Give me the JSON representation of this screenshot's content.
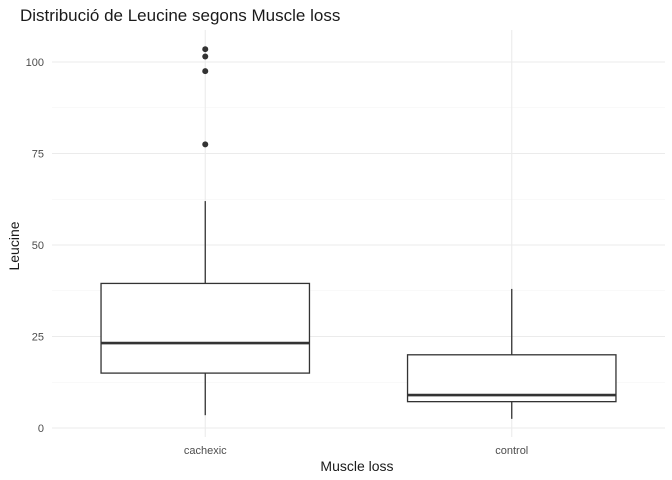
{
  "chart_data": {
    "type": "box",
    "title": "Distribució de Leucine segons Muscle loss",
    "xlabel": "Muscle loss",
    "ylabel": "Leucine",
    "categories": [
      "cachexic",
      "control"
    ],
    "ylim": [
      -1,
      108
    ],
    "yticks": [
      0,
      25,
      50,
      75,
      100
    ],
    "grid": true,
    "boxes": [
      {
        "category": "cachexic",
        "whisker_low": 3.5,
        "q1": 15.0,
        "median": 23.2,
        "q3": 39.5,
        "whisker_high": 62.0,
        "outliers": [
          77.5,
          97.5,
          101.5,
          103.5
        ]
      },
      {
        "category": "control",
        "whisker_low": 2.5,
        "q1": 7.2,
        "median": 9.0,
        "q3": 20.0,
        "whisker_high": 38.0,
        "outliers": []
      }
    ]
  }
}
